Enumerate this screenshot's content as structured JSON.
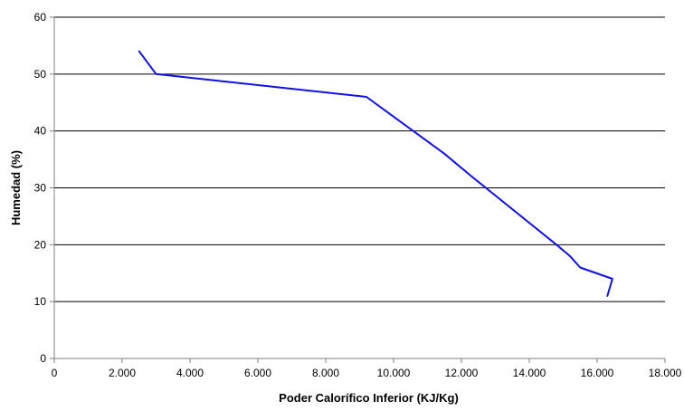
{
  "chart_data": {
    "type": "line",
    "xlabel": "Poder Calorífico Inferior (KJ/Kg)",
    "ylabel": "Humedad (%)",
    "xlim": [
      0,
      18000
    ],
    "ylim": [
      0,
      60
    ],
    "x_ticks": [
      0,
      2000,
      4000,
      6000,
      8000,
      10000,
      12000,
      14000,
      16000,
      18000
    ],
    "x_tick_labels": [
      "0",
      "2.000",
      "4.000",
      "6.000",
      "8.000",
      "10.000",
      "12.000",
      "14.000",
      "16.000",
      "18.000"
    ],
    "y_ticks": [
      0,
      10,
      20,
      30,
      40,
      50,
      60
    ],
    "y_tick_labels": [
      "0",
      "10",
      "20",
      "30",
      "40",
      "50",
      "60"
    ],
    "grid": "horizontal",
    "series": [
      {
        "color": "#1010ee",
        "x": [
          2500,
          3000,
          9200,
          11500,
          12300,
          14800,
          15200,
          15500,
          16450,
          16300
        ],
        "y": [
          54,
          50,
          46,
          36,
          32,
          20,
          18,
          16,
          14,
          11
        ]
      }
    ]
  }
}
